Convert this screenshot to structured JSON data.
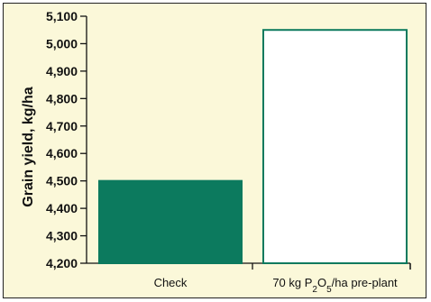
{
  "chart_data": {
    "type": "bar",
    "categories": [
      "Check",
      "70 kg P2O5/ha pre-plant"
    ],
    "category_display": [
      {
        "parts": [
          {
            "t": "Check",
            "sub": false
          }
        ]
      },
      {
        "parts": [
          {
            "t": "70 kg P",
            "sub": false
          },
          {
            "t": "2",
            "sub": true
          },
          {
            "t": "O",
            "sub": false
          },
          {
            "t": "5",
            "sub": true
          },
          {
            "t": "/ha pre-plant",
            "sub": false
          }
        ]
      }
    ],
    "values": [
      4500,
      5050
    ],
    "ylabel": "Grain yield, kg/ha",
    "xlabel": "",
    "ylim": [
      4200,
      5100
    ],
    "yticks": [
      4200,
      4300,
      4400,
      4500,
      4600,
      4700,
      4800,
      4900,
      5000,
      5100
    ],
    "ytick_labels": [
      "4,200",
      "4,300",
      "4,400",
      "4,500",
      "4,600",
      "4,700",
      "4,800",
      "4,900",
      "5,000",
      "5,100"
    ],
    "bar_styles": [
      {
        "fill": "#0c7a5e",
        "stroke": "#0c7a5e"
      },
      {
        "fill": "#ffffff",
        "stroke": "#0c7a5e"
      }
    ],
    "background": "#fbf8d9",
    "grid": false
  }
}
